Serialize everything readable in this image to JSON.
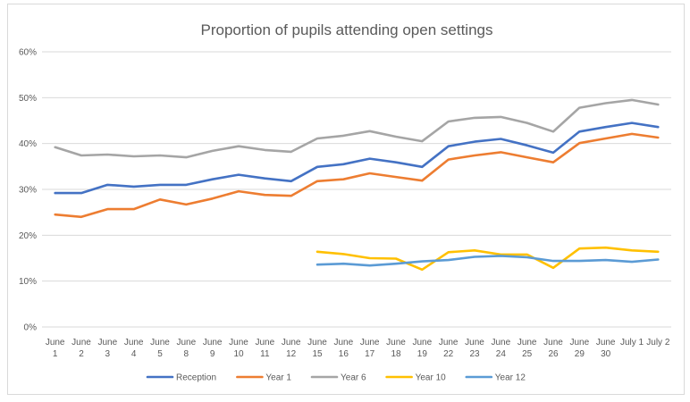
{
  "chart_data": {
    "type": "line",
    "title": "Proportion of pupils attending open settings",
    "xlabel": "",
    "ylabel": "",
    "ylim": [
      0,
      60
    ],
    "y_ticks": [
      "0%",
      "10%",
      "20%",
      "30%",
      "40%",
      "50%",
      "60%"
    ],
    "categories": [
      [
        "June",
        "1"
      ],
      [
        "June",
        "2"
      ],
      [
        "June",
        "3"
      ],
      [
        "June",
        "4"
      ],
      [
        "June",
        "5"
      ],
      [
        "June",
        "8"
      ],
      [
        "June",
        "9"
      ],
      [
        "June",
        "10"
      ],
      [
        "June",
        "11"
      ],
      [
        "June",
        "12"
      ],
      [
        "June",
        "15"
      ],
      [
        "June",
        "16"
      ],
      [
        "June",
        "17"
      ],
      [
        "June",
        "18"
      ],
      [
        "June",
        "19"
      ],
      [
        "June",
        "22"
      ],
      [
        "June",
        "23"
      ],
      [
        "June",
        "24"
      ],
      [
        "June",
        "25"
      ],
      [
        "June",
        "26"
      ],
      [
        "June",
        "29"
      ],
      [
        "June",
        "30"
      ],
      [
        "July 1",
        ""
      ],
      [
        "July 2",
        ""
      ]
    ],
    "grid": true,
    "legend_position": "bottom",
    "series": [
      {
        "name": "Reception",
        "color": "#4472c4",
        "values": [
          29.2,
          29.2,
          31.0,
          30.6,
          31.0,
          31.0,
          32.2,
          33.2,
          32.4,
          31.8,
          34.9,
          35.5,
          36.7,
          35.9,
          34.9,
          39.4,
          40.4,
          41.0,
          39.6,
          38.0,
          42.6,
          43.6,
          44.5,
          43.6
        ]
      },
      {
        "name": "Year 1",
        "color": "#ed7d31",
        "values": [
          24.5,
          24.0,
          25.7,
          25.7,
          27.8,
          26.7,
          28.0,
          29.6,
          28.8,
          28.6,
          31.8,
          32.2,
          33.5,
          32.7,
          31.9,
          36.5,
          37.4,
          38.1,
          37.0,
          35.9,
          40.1,
          41.1,
          42.1,
          41.3
        ]
      },
      {
        "name": "Year 6",
        "color": "#a5a5a5",
        "values": [
          39.2,
          37.4,
          37.6,
          37.2,
          37.4,
          37.0,
          38.4,
          39.4,
          38.6,
          38.2,
          41.1,
          41.7,
          42.7,
          41.5,
          40.5,
          44.8,
          45.6,
          45.8,
          44.5,
          42.6,
          47.8,
          48.8,
          49.5,
          48.5
        ]
      },
      {
        "name": "Year 10",
        "color": "#ffc000",
        "values": [
          null,
          null,
          null,
          null,
          null,
          null,
          null,
          null,
          null,
          null,
          16.4,
          15.9,
          15.0,
          14.9,
          12.5,
          16.3,
          16.7,
          15.8,
          15.8,
          12.9,
          17.1,
          17.3,
          16.7,
          16.4
        ]
      },
      {
        "name": "Year 12",
        "color": "#5b9bd5",
        "values": [
          null,
          null,
          null,
          null,
          null,
          null,
          null,
          null,
          null,
          null,
          13.6,
          13.8,
          13.4,
          13.8,
          14.3,
          14.6,
          15.3,
          15.5,
          15.2,
          14.4,
          14.4,
          14.6,
          14.2,
          14.7
        ]
      }
    ]
  }
}
